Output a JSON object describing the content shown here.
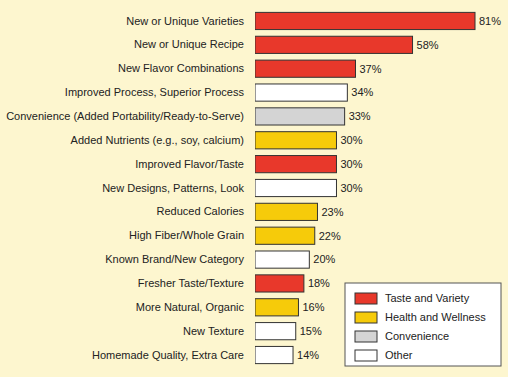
{
  "chart_data": {
    "type": "bar",
    "orientation": "horizontal",
    "data_labels": true,
    "tick_labels": "y",
    "legend": "bottom-right",
    "categories": [
      "New or Unique Varieties",
      "New or Unique Recipe",
      "New Flavor Combinations",
      "Improved Process, Superior Process",
      "Convenience (Added Portability/Ready-to-Serve)",
      "Added Nutrients (e.g., soy, calcium)",
      "Improved Flavor/Taste",
      "New Designs, Patterns, Look",
      "Reduced Calories",
      "High Fiber/Whole Grain",
      "Known Brand/New Category",
      "Fresher Taste/Texture",
      "More Natural, Organic",
      "New Texture",
      "Homemade Quality, Extra Care"
    ],
    "series": [
      {
        "name": "Taste and Variety",
        "color": "#e8382b",
        "values": [
          81,
          58,
          37,
          null,
          null,
          null,
          30,
          null,
          null,
          null,
          null,
          18,
          null,
          null,
          null
        ],
        "value_labels": [
          "81%",
          "58%",
          "37%",
          null,
          null,
          null,
          "30%",
          null,
          null,
          null,
          null,
          "18%",
          null,
          null,
          null
        ]
      },
      {
        "name": "Health and Wellness",
        "color": "#f6cb0a",
        "values": [
          null,
          null,
          null,
          null,
          null,
          30,
          null,
          null,
          23,
          22,
          null,
          null,
          16,
          null,
          null
        ],
        "value_labels": [
          null,
          null,
          null,
          null,
          null,
          "30%",
          null,
          null,
          "23%",
          "22%",
          null,
          null,
          "16%",
          null,
          null
        ]
      },
      {
        "name": "Convenience",
        "color": "#d4d4d4",
        "values": [
          null,
          null,
          null,
          null,
          33,
          null,
          null,
          null,
          null,
          null,
          null,
          null,
          null,
          null,
          null
        ],
        "value_labels": [
          null,
          null,
          null,
          null,
          "33%",
          null,
          null,
          null,
          null,
          null,
          null,
          null,
          null,
          null,
          null
        ]
      },
      {
        "name": "Other",
        "color": "#ffffff",
        "values": [
          null,
          null,
          null,
          34,
          null,
          null,
          null,
          30,
          null,
          null,
          20,
          null,
          null,
          15,
          14
        ],
        "value_labels": [
          null,
          null,
          null,
          "34%",
          null,
          null,
          null,
          "30%",
          null,
          null,
          "20%",
          null,
          null,
          "15%",
          "14%"
        ]
      }
    ]
  }
}
